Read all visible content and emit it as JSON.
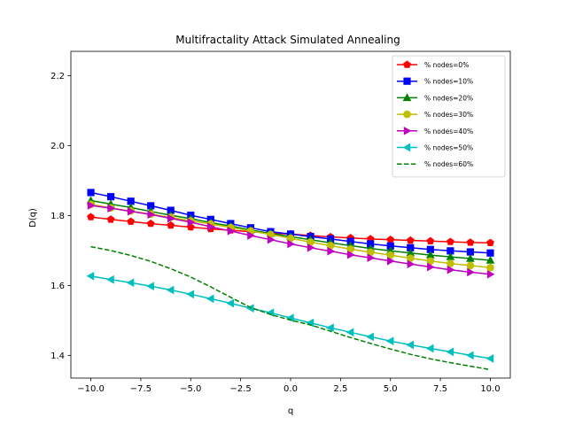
{
  "chart_data": {
    "type": "line",
    "title": "Multifractality Attack Simulated Annealing",
    "xlabel": "q",
    "ylabel": "D(q)",
    "xlim": [
      -11,
      11
    ],
    "ylim": [
      1.335,
      2.27
    ],
    "xticks": [
      -10.0,
      -7.5,
      -5.0,
      -2.5,
      0.0,
      2.5,
      5.0,
      7.5,
      10.0
    ],
    "xtick_labels": [
      "−10.0",
      "−7.5",
      "−5.0",
      "−2.5",
      "0.0",
      "2.5",
      "5.0",
      "7.5",
      "10.0"
    ],
    "yticks": [
      1.4,
      1.6,
      1.8,
      2.0,
      2.2
    ],
    "ytick_labels": [
      "1.4",
      "1.6",
      "1.8",
      "2.0",
      "2.2"
    ],
    "grid": false,
    "legend_position": "top-right",
    "x": [
      -10,
      -9,
      -8,
      -7,
      -6,
      -5,
      -4,
      -3,
      -2,
      -1,
      0,
      1,
      2,
      3,
      4,
      5,
      6,
      7,
      8,
      9,
      10
    ],
    "series": [
      {
        "name": "% nodes=0%",
        "color": "#ff0000",
        "marker": "pentagon",
        "line": "solid",
        "values": [
          1.796,
          1.789,
          1.783,
          1.777,
          1.772,
          1.767,
          1.762,
          1.758,
          1.754,
          1.75,
          1.747,
          1.743,
          1.739,
          1.736,
          1.733,
          1.731,
          1.729,
          1.727,
          1.725,
          1.723,
          1.722
        ]
      },
      {
        "name": "% nodes=10%",
        "color": "#0000ff",
        "marker": "square",
        "line": "solid",
        "values": [
          1.866,
          1.854,
          1.841,
          1.828,
          1.815,
          1.801,
          1.789,
          1.777,
          1.765,
          1.754,
          1.747,
          1.74,
          1.733,
          1.726,
          1.719,
          1.713,
          1.708,
          1.703,
          1.699,
          1.696,
          1.693
        ]
      },
      {
        "name": "% nodes=20%",
        "color": "#008000",
        "marker": "triangle-up",
        "line": "solid",
        "values": [
          1.843,
          1.833,
          1.823,
          1.812,
          1.801,
          1.791,
          1.78,
          1.77,
          1.759,
          1.749,
          1.74,
          1.731,
          1.722,
          1.714,
          1.706,
          1.699,
          1.693,
          1.687,
          1.682,
          1.677,
          1.672
        ]
      },
      {
        "name": "% nodes=30%",
        "color": "#bfbf00",
        "marker": "circle",
        "line": "solid",
        "values": [
          1.832,
          1.822,
          1.813,
          1.804,
          1.795,
          1.785,
          1.776,
          1.766,
          1.756,
          1.746,
          1.735,
          1.724,
          1.714,
          1.704,
          1.695,
          1.687,
          1.678,
          1.67,
          1.663,
          1.657,
          1.651
        ]
      },
      {
        "name": "% nodes=40%",
        "color": "#bf00bf",
        "marker": "triangle-right",
        "line": "solid",
        "values": [
          1.829,
          1.821,
          1.812,
          1.803,
          1.792,
          1.781,
          1.768,
          1.756,
          1.743,
          1.731,
          1.719,
          1.708,
          1.698,
          1.688,
          1.679,
          1.67,
          1.661,
          1.653,
          1.645,
          1.638,
          1.632
        ]
      },
      {
        "name": "% nodes=50%",
        "color": "#00bfbf",
        "marker": "triangle-left",
        "line": "solid",
        "values": [
          1.627,
          1.617,
          1.608,
          1.598,
          1.587,
          1.575,
          1.562,
          1.549,
          1.535,
          1.522,
          1.507,
          1.493,
          1.479,
          1.466,
          1.453,
          1.441,
          1.43,
          1.42,
          1.41,
          1.4,
          1.391
        ]
      },
      {
        "name": "% nodes=60%",
        "color": "#008000",
        "marker": "none",
        "line": "dashed",
        "values": [
          1.711,
          1.7,
          1.686,
          1.669,
          1.648,
          1.624,
          1.596,
          1.566,
          1.537,
          1.517,
          1.501,
          1.487,
          1.469,
          1.451,
          1.434,
          1.418,
          1.403,
          1.39,
          1.379,
          1.369,
          1.359
        ]
      }
    ]
  }
}
